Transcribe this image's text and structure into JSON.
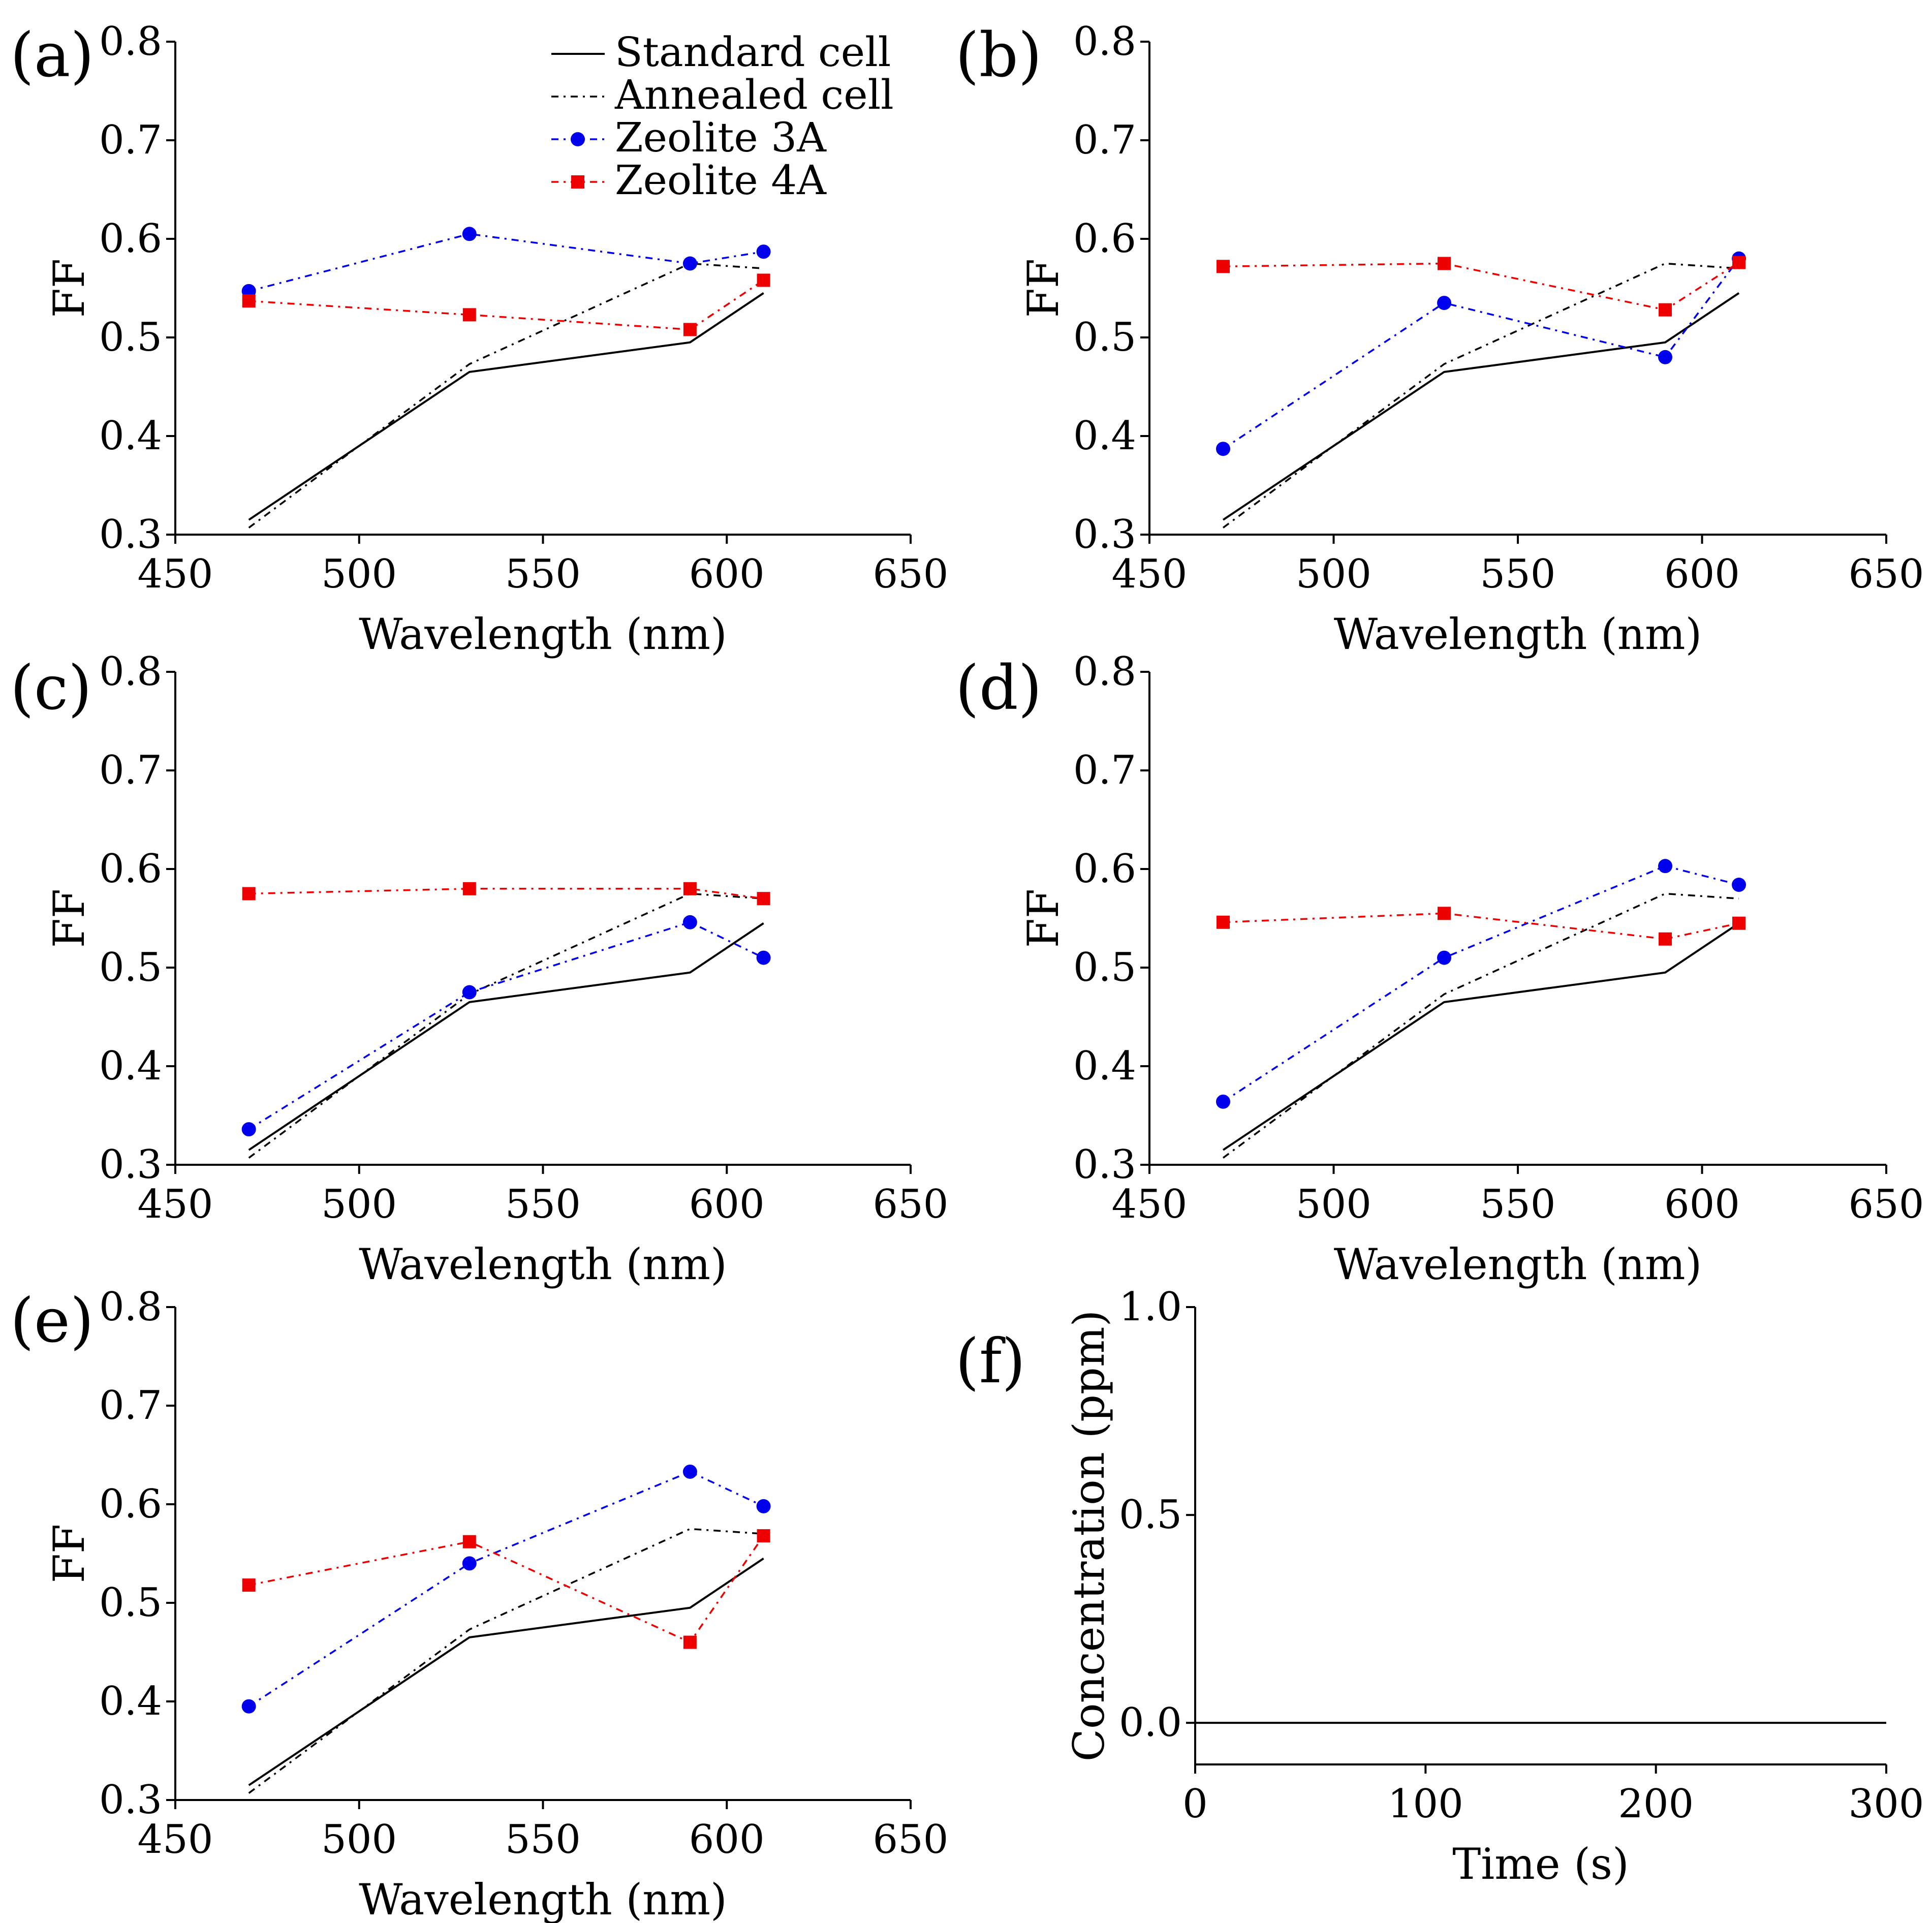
{
  "chart_data": [
    {
      "panel": "(a)",
      "type": "line",
      "xlabel": "Wavelength (nm)",
      "ylabel": "FF",
      "xlim": [
        450,
        650
      ],
      "ylim": [
        0.3,
        0.8
      ],
      "xticks": [
        "450",
        "500",
        "550",
        "600",
        "650"
      ],
      "yticks": [
        "0.3",
        "0.4",
        "0.5",
        "0.6",
        "0.7",
        "0.8"
      ],
      "x": [
        470,
        530,
        590,
        610
      ],
      "legend": {
        "placement": "top-right",
        "entries": [
          "Standard  cell",
          "Annealed cell",
          "Zeolite 3A",
          "Zeolite 4A"
        ]
      },
      "series": [
        {
          "name": "Standard cell",
          "values": [
            0.315,
            0.465,
            0.495,
            0.545
          ]
        },
        {
          "name": "Annealed cell",
          "values": [
            0.307,
            0.473,
            0.575,
            0.57
          ]
        },
        {
          "name": "Zeolite 3A",
          "values": [
            0.547,
            0.605,
            0.575,
            0.587
          ]
        },
        {
          "name": "Zeolite 4A",
          "values": [
            0.537,
            0.523,
            0.508,
            0.558
          ]
        }
      ]
    },
    {
      "panel": "(b)",
      "type": "line",
      "xlabel": "Wavelength (nm)",
      "ylabel": "FF",
      "xlim": [
        450,
        650
      ],
      "ylim": [
        0.3,
        0.8
      ],
      "xticks": [
        "450",
        "500",
        "550",
        "600",
        "650"
      ],
      "yticks": [
        "0.3",
        "0.4",
        "0.5",
        "0.6",
        "0.7",
        "0.8"
      ],
      "x": [
        470,
        530,
        590,
        610
      ],
      "series": [
        {
          "name": "Standard cell",
          "values": [
            0.315,
            0.465,
            0.495,
            0.545
          ]
        },
        {
          "name": "Annealed cell",
          "values": [
            0.307,
            0.473,
            0.575,
            0.57
          ]
        },
        {
          "name": "Zeolite 3A",
          "values": [
            0.387,
            0.535,
            0.48,
            0.58
          ]
        },
        {
          "name": "Zeolite 4A",
          "values": [
            0.572,
            0.575,
            0.528,
            0.576
          ]
        }
      ]
    },
    {
      "panel": "(c)",
      "type": "line",
      "xlabel": "Wavelength (nm)",
      "ylabel": "FF",
      "xlim": [
        450,
        650
      ],
      "ylim": [
        0.3,
        0.8
      ],
      "xticks": [
        "450",
        "500",
        "550",
        "600",
        "650"
      ],
      "yticks": [
        "0.3",
        "0.4",
        "0.5",
        "0.6",
        "0.7",
        "0.8"
      ],
      "x": [
        470,
        530,
        590,
        610
      ],
      "series": [
        {
          "name": "Standard cell",
          "values": [
            0.315,
            0.465,
            0.495,
            0.545
          ]
        },
        {
          "name": "Annealed cell",
          "values": [
            0.307,
            0.473,
            0.575,
            0.57
          ]
        },
        {
          "name": "Zeolite 3A",
          "values": [
            0.336,
            0.475,
            0.546,
            0.51
          ]
        },
        {
          "name": "Zeolite 4A",
          "values": [
            0.575,
            0.58,
            0.58,
            0.57
          ]
        }
      ]
    },
    {
      "panel": "(d)",
      "type": "line",
      "xlabel": "Wavelength (nm)",
      "ylabel": "FF",
      "xlim": [
        450,
        650
      ],
      "ylim": [
        0.3,
        0.8
      ],
      "xticks": [
        "450",
        "500",
        "550",
        "600",
        "650"
      ],
      "yticks": [
        "0.3",
        "0.4",
        "0.5",
        "0.6",
        "0.7",
        "0.8"
      ],
      "x": [
        470,
        530,
        590,
        610
      ],
      "series": [
        {
          "name": "Standard cell",
          "values": [
            0.315,
            0.465,
            0.495,
            0.545
          ]
        },
        {
          "name": "Annealed cell",
          "values": [
            0.307,
            0.473,
            0.575,
            0.57
          ]
        },
        {
          "name": "Zeolite 3A",
          "values": [
            0.364,
            0.51,
            0.603,
            0.584
          ]
        },
        {
          "name": "Zeolite 4A",
          "values": [
            0.546,
            0.555,
            0.529,
            0.545
          ]
        }
      ]
    },
    {
      "panel": "(e)",
      "type": "line",
      "xlabel": "Wavelength (nm)",
      "ylabel": "FF",
      "xlim": [
        450,
        650
      ],
      "ylim": [
        0.3,
        0.8
      ],
      "xticks": [
        "450",
        "500",
        "550",
        "600",
        "650"
      ],
      "yticks": [
        "0.3",
        "0.4",
        "0.5",
        "0.6",
        "0.7",
        "0.8"
      ],
      "x": [
        470,
        530,
        590,
        610
      ],
      "series": [
        {
          "name": "Standard cell",
          "values": [
            0.315,
            0.465,
            0.495,
            0.545
          ]
        },
        {
          "name": "Annealed cell",
          "values": [
            0.307,
            0.473,
            0.575,
            0.57
          ]
        },
        {
          "name": "Zeolite 3A",
          "values": [
            0.395,
            0.54,
            0.633,
            0.598
          ]
        },
        {
          "name": "Zeolite 4A",
          "values": [
            0.518,
            0.562,
            0.46,
            0.568
          ]
        }
      ]
    },
    {
      "panel": "(f)",
      "type": "line",
      "xlabel": "Time (s)",
      "ylabel": "Concentration (ppm)",
      "xlim": [
        0,
        300
      ],
      "ylim": [
        -0.1,
        1.0
      ],
      "xticks": [
        "0",
        "100",
        "200",
        "300"
      ],
      "yticks": [
        "0.0",
        "0.5",
        "1.0"
      ],
      "x": [
        0,
        300
      ],
      "series": [
        {
          "name": "Concentration",
          "values": [
            0.0,
            0.0
          ]
        }
      ]
    }
  ],
  "styles": {
    "Standard cell": {
      "color": "#000000",
      "dash": "",
      "marker": "none"
    },
    "Annealed cell": {
      "color": "#000000",
      "dash": "14 10 4 10",
      "marker": "none"
    },
    "Zeolite 3A": {
      "color": "#0000ee",
      "dash": "14 10 4 10",
      "marker": "circle"
    },
    "Zeolite 4A": {
      "color": "#ee0000",
      "dash": "14 10 4 10",
      "marker": "square"
    },
    "Concentration": {
      "color": "#000000",
      "dash": "",
      "marker": "none"
    }
  }
}
